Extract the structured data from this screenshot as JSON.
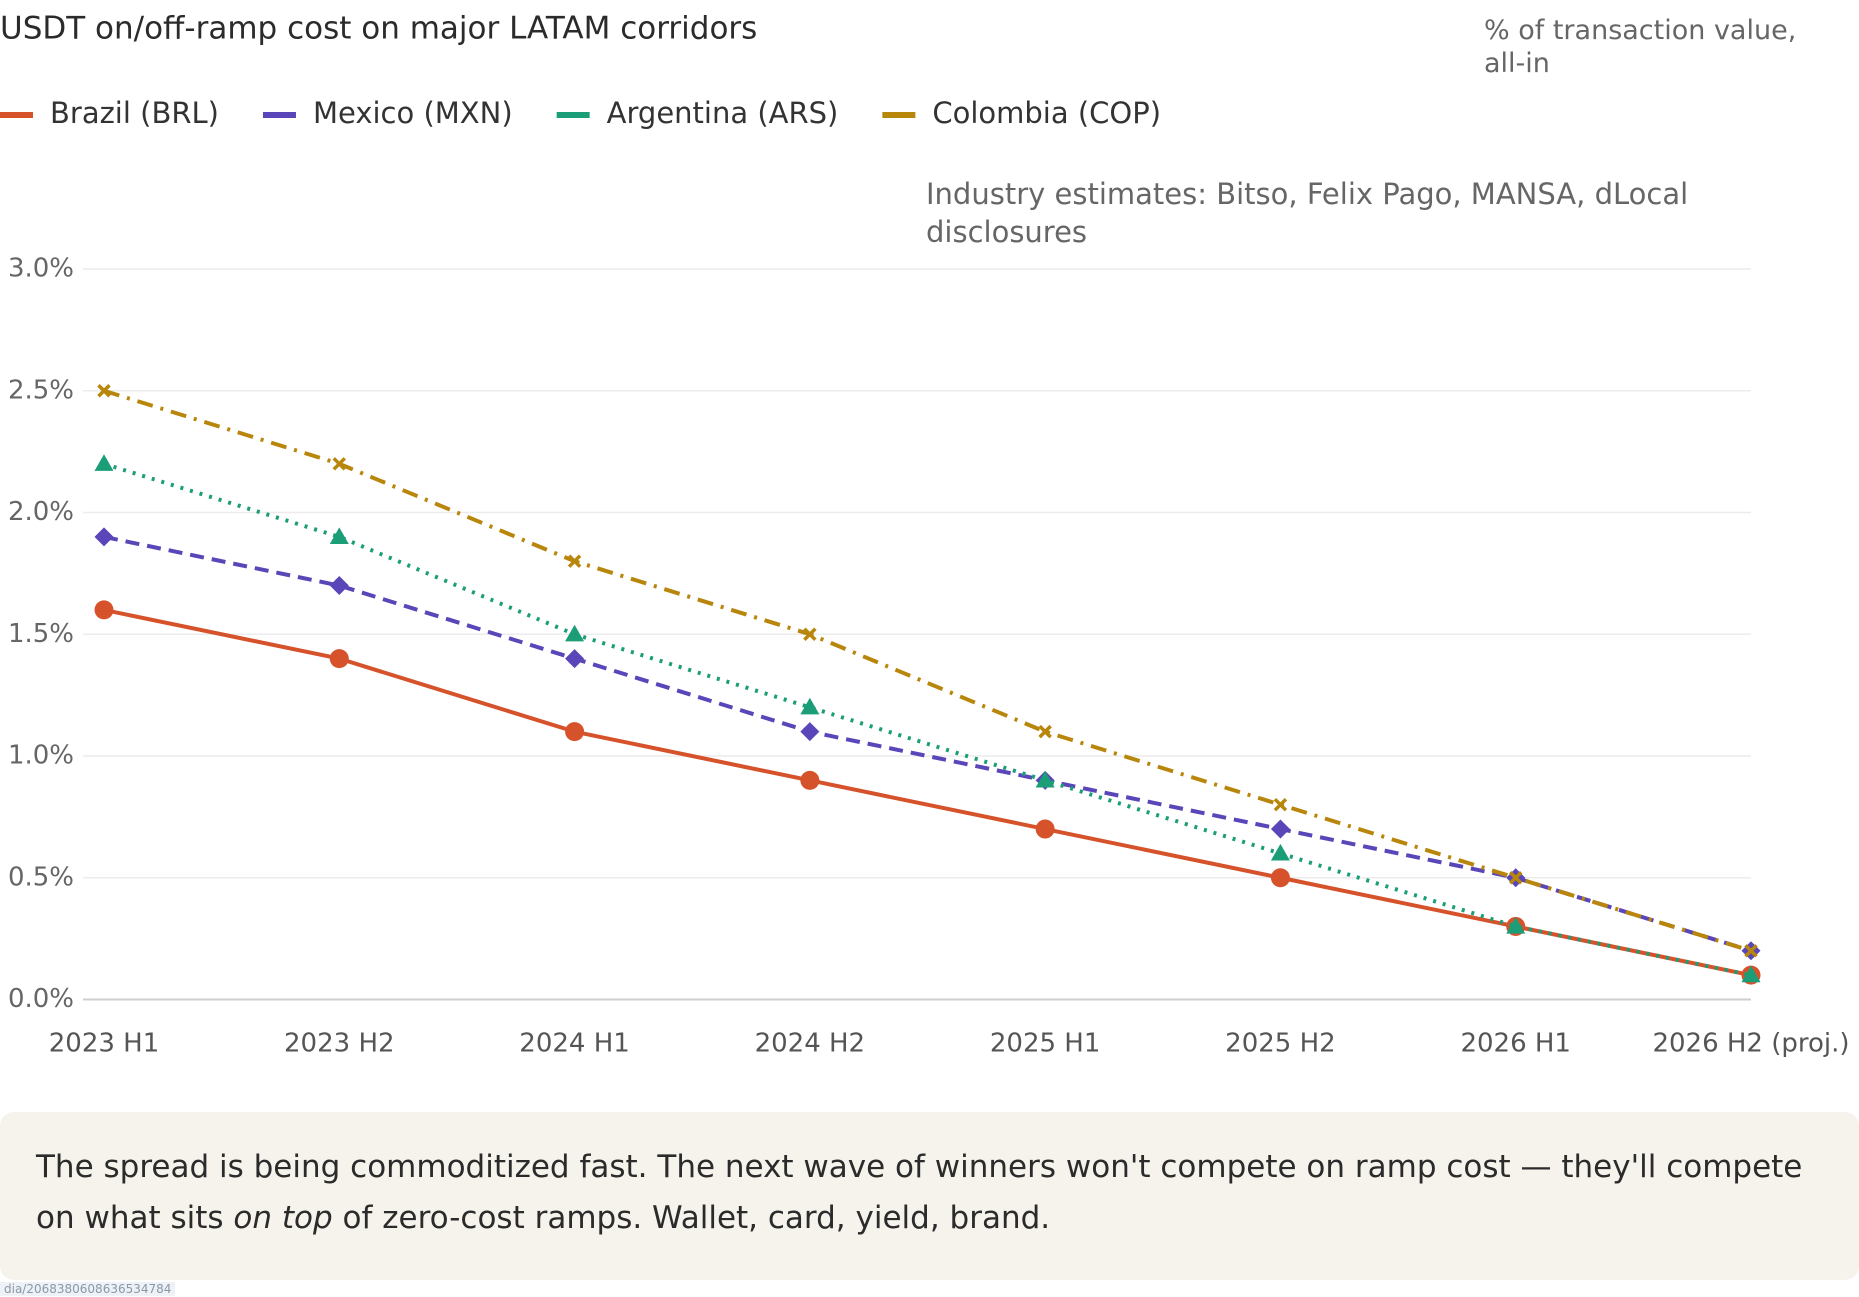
{
  "chart_data": {
    "type": "line",
    "title": "USDT on/off-ramp cost on major LATAM corridors",
    "subtitle": "% of transaction value, all-in",
    "annotation": "Industry estimates: Bitso, Felix Pago, MANSA, dLocal disclosures",
    "categories": [
      "2023 H1",
      "2023 H2",
      "2024 H1",
      "2024 H2",
      "2025 H1",
      "2025 H2",
      "2026 H1",
      "2026 H2 (proj.)"
    ],
    "series": [
      {
        "name": "Brazil (BRL)",
        "color": "#d6522b",
        "line_style": "solid",
        "marker": "circle",
        "values": [
          1.6,
          1.4,
          1.1,
          0.9,
          0.7,
          0.5,
          0.3,
          0.1
        ]
      },
      {
        "name": "Mexico (MXN)",
        "color": "#5a45b9",
        "line_style": "dashed",
        "marker": "diamond",
        "values": [
          1.9,
          1.7,
          1.4,
          1.1,
          0.9,
          0.7,
          0.5,
          0.2
        ]
      },
      {
        "name": "Argentina (ARS)",
        "color": "#1b9e77",
        "line_style": "dotted",
        "marker": "triangle",
        "values": [
          2.2,
          1.9,
          1.5,
          1.2,
          0.9,
          0.6,
          0.3,
          0.1
        ]
      },
      {
        "name": "Colombia (COP)",
        "color": "#b8860b",
        "line_style": "dashdot",
        "marker": "x",
        "values": [
          2.5,
          2.2,
          1.8,
          1.5,
          1.1,
          0.8,
          0.5,
          0.2
        ]
      }
    ],
    "ylim": [
      0,
      3.0
    ],
    "yticks": [
      {
        "value": 0,
        "label": "0.0%"
      },
      {
        "value": 0.5,
        "label": "0.5%"
      },
      {
        "value": 1.0,
        "label": "1.0%"
      },
      {
        "value": 1.5,
        "label": "1.5%"
      },
      {
        "value": 2.0,
        "label": "2.0%"
      },
      {
        "value": 2.5,
        "label": "2.5%"
      },
      {
        "value": 3.0,
        "label": "3.0%"
      }
    ],
    "grid": true,
    "legend": "top"
  },
  "caption": {
    "parts": [
      "The spread is being commoditized fast. The next wave of winners won't compete on ramp cost — they'll compete on what sits ",
      "on top",
      " of zero-cost ramps. Wallet, card, yield, brand."
    ]
  },
  "status_url": "dia/2068380608636534784"
}
